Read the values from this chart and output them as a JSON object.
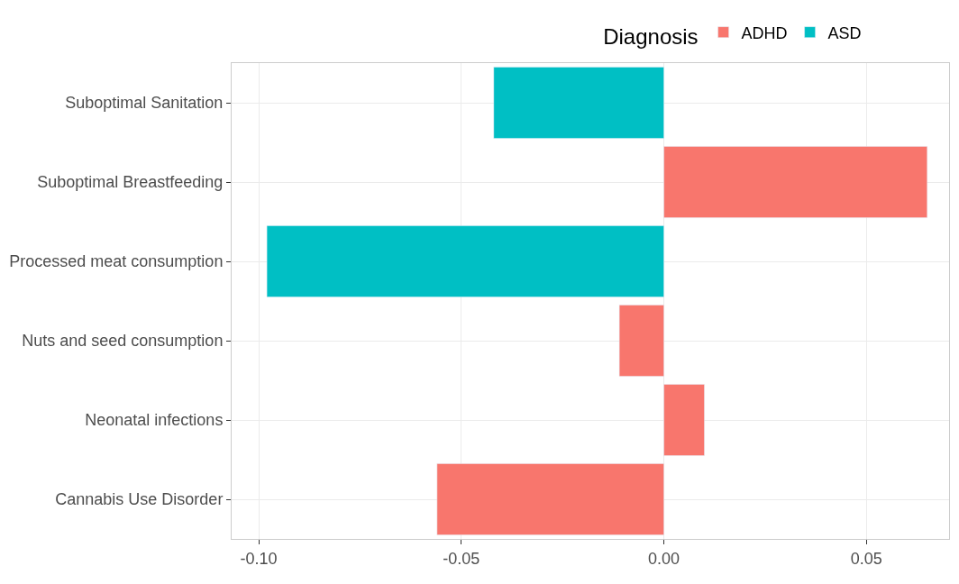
{
  "chart_data": {
    "type": "bar",
    "orientation": "horizontal",
    "legend_title": "Diagnosis",
    "legend": "top",
    "categories": [
      "Suboptimal Sanitation",
      "Suboptimal Breastfeeding",
      "Processed meat consumption",
      "Nuts and seed consumption",
      "Neonatal infections",
      "Cannabis Use Disorder"
    ],
    "series": [
      {
        "name": "ADHD",
        "color": "#f8766d",
        "values": [
          null,
          0.065,
          null,
          -0.011,
          0.01,
          -0.056
        ]
      },
      {
        "name": "ASD",
        "color": "#00bfc4",
        "values": [
          -0.042,
          null,
          -0.098,
          null,
          null,
          null
        ]
      }
    ],
    "xlim": [
      -0.1067,
      0.0704
    ],
    "xticks": [
      {
        "value": -0.1,
        "label": "-0.10"
      },
      {
        "value": -0.05,
        "label": "-0.05"
      },
      {
        "value": 0,
        "label": "0.00"
      },
      {
        "value": 0.05,
        "label": "0.05"
      }
    ],
    "grid": true
  }
}
